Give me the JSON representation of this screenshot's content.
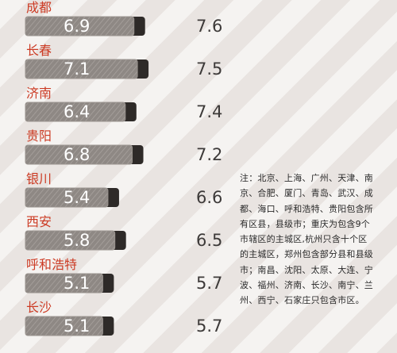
{
  "chart_data": {
    "type": "bar",
    "categories": [
      "成都",
      "长春",
      "济南",
      "贵阳",
      "银川",
      "西安",
      "呼和浩特",
      "长沙"
    ],
    "series": [
      {
        "values": [
          6.9,
          7.1,
          6.4,
          6.8,
          5.4,
          5.8,
          5.1,
          5.1
        ]
      },
      {
        "values": [
          7.6,
          7.5,
          7.4,
          7.2,
          6.6,
          6.5,
          5.7,
          5.7
        ]
      }
    ],
    "bar_scale_max": 7.6
  },
  "note": "注：北京、上海、广州、天津、南京、合肥、厦门、青岛、武汉、成都、海口、呼和浩特、贵阳包含所有区县，县级市；重庆为包含9个市辖区的主城区,杭州只含十个区的主城区，郑州包含部分县和县级市；南昌、沈阳、太原、大连、宁波、福州、济南、长沙、南宁、兰州、西宁、石家庄只包含市区。",
  "colors": {
    "bar_fill": "#8e8884",
    "bar_dark": "#2e2a28",
    "bar_border": "#9a948f",
    "city_label": "#cc3b24",
    "value_label": "#ffffff",
    "second_value": "#3d3a39"
  }
}
